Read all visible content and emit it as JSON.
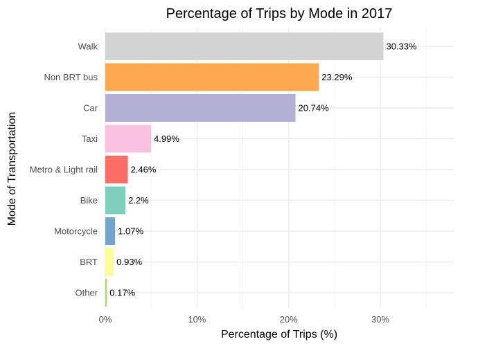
{
  "chart_data": {
    "type": "bar",
    "orientation": "horizontal",
    "title": "Percentage of Trips by Mode in 2017",
    "xlabel": "Percentage of Trips (%)",
    "ylabel": "Mode of Transportation",
    "xlim": [
      0,
      38
    ],
    "x_ticks": [
      0,
      10,
      20,
      30
    ],
    "x_tick_labels": [
      "0%",
      "10%",
      "20%",
      "30%"
    ],
    "grid": true,
    "legend": "none",
    "bars": [
      {
        "category": "Walk",
        "value": 30.33,
        "label": "30.33%",
        "color": "#d3d3d3"
      },
      {
        "category": "Non BRT bus",
        "value": 23.29,
        "label": "23.29%",
        "color": "#fda84f"
      },
      {
        "category": "Car",
        "value": 20.74,
        "label": "20.74%",
        "color": "#b3aed3"
      },
      {
        "category": "Taxi",
        "value": 4.99,
        "label": "4.99%",
        "color": "#f9c0df"
      },
      {
        "category": "Metro & Light rail",
        "value": 2.46,
        "label": "2.46%",
        "color": "#fa6e66"
      },
      {
        "category": "Bike",
        "value": 2.2,
        "label": "2.2%",
        "color": "#7fcdbb"
      },
      {
        "category": "Motorcycle",
        "value": 1.07,
        "label": "1.07%",
        "color": "#71a5cc"
      },
      {
        "category": "BRT",
        "value": 0.93,
        "label": "0.93%",
        "color": "#fcfc9b"
      },
      {
        "category": "Other",
        "value": 0.17,
        "label": "0.17%",
        "color": "#a6d96a"
      }
    ]
  }
}
